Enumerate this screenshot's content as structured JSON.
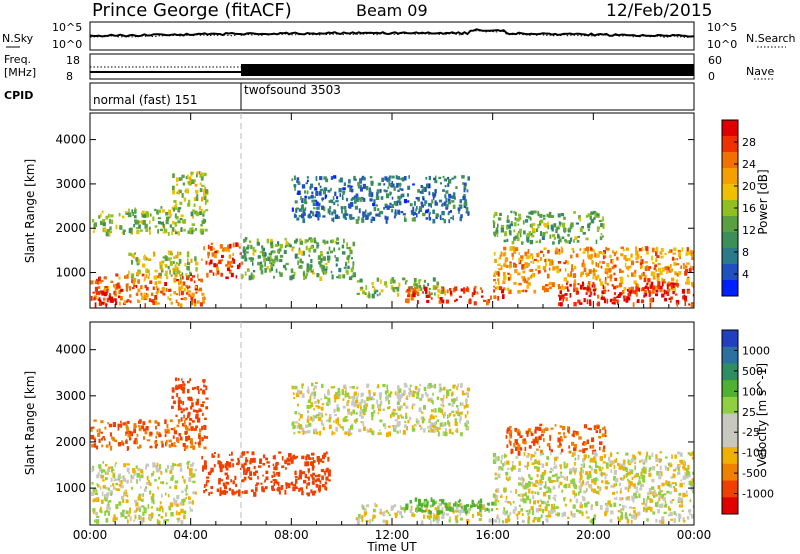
{
  "header": {
    "station": "Prince George (fitACF)",
    "beam": "Beam 09",
    "date": "12/Feb/2015"
  },
  "summary": {
    "nsky_label": "N.Sky",
    "nsearch_label": "N.Search",
    "noise_ticks": [
      "10^5",
      "10^0"
    ],
    "freq_label_1": "Freq.",
    "freq_label_2": "[MHz]",
    "freq_ticks": [
      "18",
      "8"
    ],
    "nave_label": "Nave",
    "nave_ticks": [
      "60",
      "0"
    ],
    "cpid_label": "CPID",
    "cpid_modes": [
      {
        "label": "normal (fast) 151",
        "start_hour": 0,
        "end_hour": 6
      },
      {
        "label": "twofsound 3503",
        "start_hour": 6,
        "end_hour": 24
      }
    ]
  },
  "colors": {
    "power_scale": [
      "#0020ff",
      "#2050c0",
      "#2a7a8a",
      "#3d8f5a",
      "#5aa040",
      "#90c020",
      "#f0c000",
      "#f5a000",
      "#f07000",
      "#f03000",
      "#e00000"
    ],
    "velocity_scale": [
      "#2040c0",
      "#2a70a0",
      "#2e8e60",
      "#50b030",
      "#90d040",
      "#c8c8c0",
      "#c8c8c0",
      "#f0b000",
      "#f08000",
      "#f04000",
      "#e00000"
    ]
  },
  "chart_data": [
    {
      "type": "heatmap",
      "panel": "power",
      "ylabel": "Slant Range [km]",
      "yticks": [
        1000,
        2000,
        3000,
        4000
      ],
      "ylim": [
        200,
        4600
      ],
      "xlim": [
        0,
        24
      ],
      "colorbar_label": "Power [dB]",
      "colorbar_ticks": [
        4,
        8,
        12,
        16,
        20,
        24,
        28
      ],
      "colorbar_range": [
        0,
        30
      ],
      "regions": [
        {
          "t0": 0,
          "t1": 4.5,
          "r0": 300,
          "r1": 1000,
          "value": 24
        },
        {
          "t0": 0,
          "t1": 1.2,
          "r0": 300,
          "r1": 700,
          "value": 29
        },
        {
          "t0": 1.5,
          "t1": 4.2,
          "r0": 900,
          "r1": 1500,
          "value": 16
        },
        {
          "t0": 0,
          "t1": 4.6,
          "r0": 1900,
          "r1": 2500,
          "value": 14
        },
        {
          "t0": 3.2,
          "t1": 4.6,
          "r0": 2500,
          "r1": 3300,
          "value": 16
        },
        {
          "t0": 4.4,
          "t1": 6,
          "r0": 900,
          "r1": 1700,
          "value": 26
        },
        {
          "t0": 6,
          "t1": 10.5,
          "r0": 900,
          "r1": 1800,
          "value": 12
        },
        {
          "t0": 10.5,
          "t1": 14,
          "r0": 500,
          "r1": 900,
          "value": 14
        },
        {
          "t0": 12.5,
          "t1": 16.5,
          "r0": 350,
          "r1": 700,
          "value": 27
        },
        {
          "t0": 8,
          "t1": 15,
          "r0": 2200,
          "r1": 3200,
          "value": 6
        },
        {
          "t0": 16,
          "t1": 20.5,
          "r0": 1700,
          "r1": 2400,
          "value": 12
        },
        {
          "t0": 16,
          "t1": 24,
          "r0": 600,
          "r1": 1600,
          "value": 22
        },
        {
          "t0": 18.5,
          "t1": 24,
          "r0": 300,
          "r1": 800,
          "value": 29
        }
      ]
    },
    {
      "type": "heatmap",
      "panel": "velocity",
      "xlabel": "Time UT",
      "ylabel": "Slant Range [km]",
      "yticks": [
        1000,
        2000,
        3000,
        4000
      ],
      "ylim": [
        200,
        4600
      ],
      "xlim": [
        0,
        24
      ],
      "xticks": [
        "00:00",
        "04:00",
        "08:00",
        "12:00",
        "16:00",
        "20:00",
        "00:00"
      ],
      "colorbar_label": "Velocity [m s^-1]",
      "colorbar_ticks": [
        "-1000",
        "-500",
        "-100",
        "-25",
        "25",
        "100",
        "500",
        "1000"
      ],
      "regions": [
        {
          "t0": 0,
          "t1": 4.2,
          "r0": 300,
          "r1": 1600,
          "value": 0
        },
        {
          "t0": 0,
          "t1": 4.6,
          "r0": 1900,
          "r1": 2500,
          "value": -300
        },
        {
          "t0": 3.2,
          "t1": 4.6,
          "r0": 2500,
          "r1": 3400,
          "value": -500
        },
        {
          "t0": 4.4,
          "t1": 9.5,
          "r0": 900,
          "r1": 1800,
          "value": -400
        },
        {
          "t0": 8,
          "t1": 15,
          "r0": 2200,
          "r1": 3300,
          "value": 0
        },
        {
          "t0": 10.5,
          "t1": 16,
          "r0": 300,
          "r1": 700,
          "value": 0
        },
        {
          "t0": 12.5,
          "t1": 16,
          "r0": 500,
          "r1": 800,
          "value": 150
        },
        {
          "t0": 16.5,
          "t1": 20.5,
          "r0": 1800,
          "r1": 2400,
          "value": -300
        },
        {
          "t0": 16,
          "t1": 24,
          "r0": 300,
          "r1": 1800,
          "value": 0
        }
      ]
    }
  ]
}
